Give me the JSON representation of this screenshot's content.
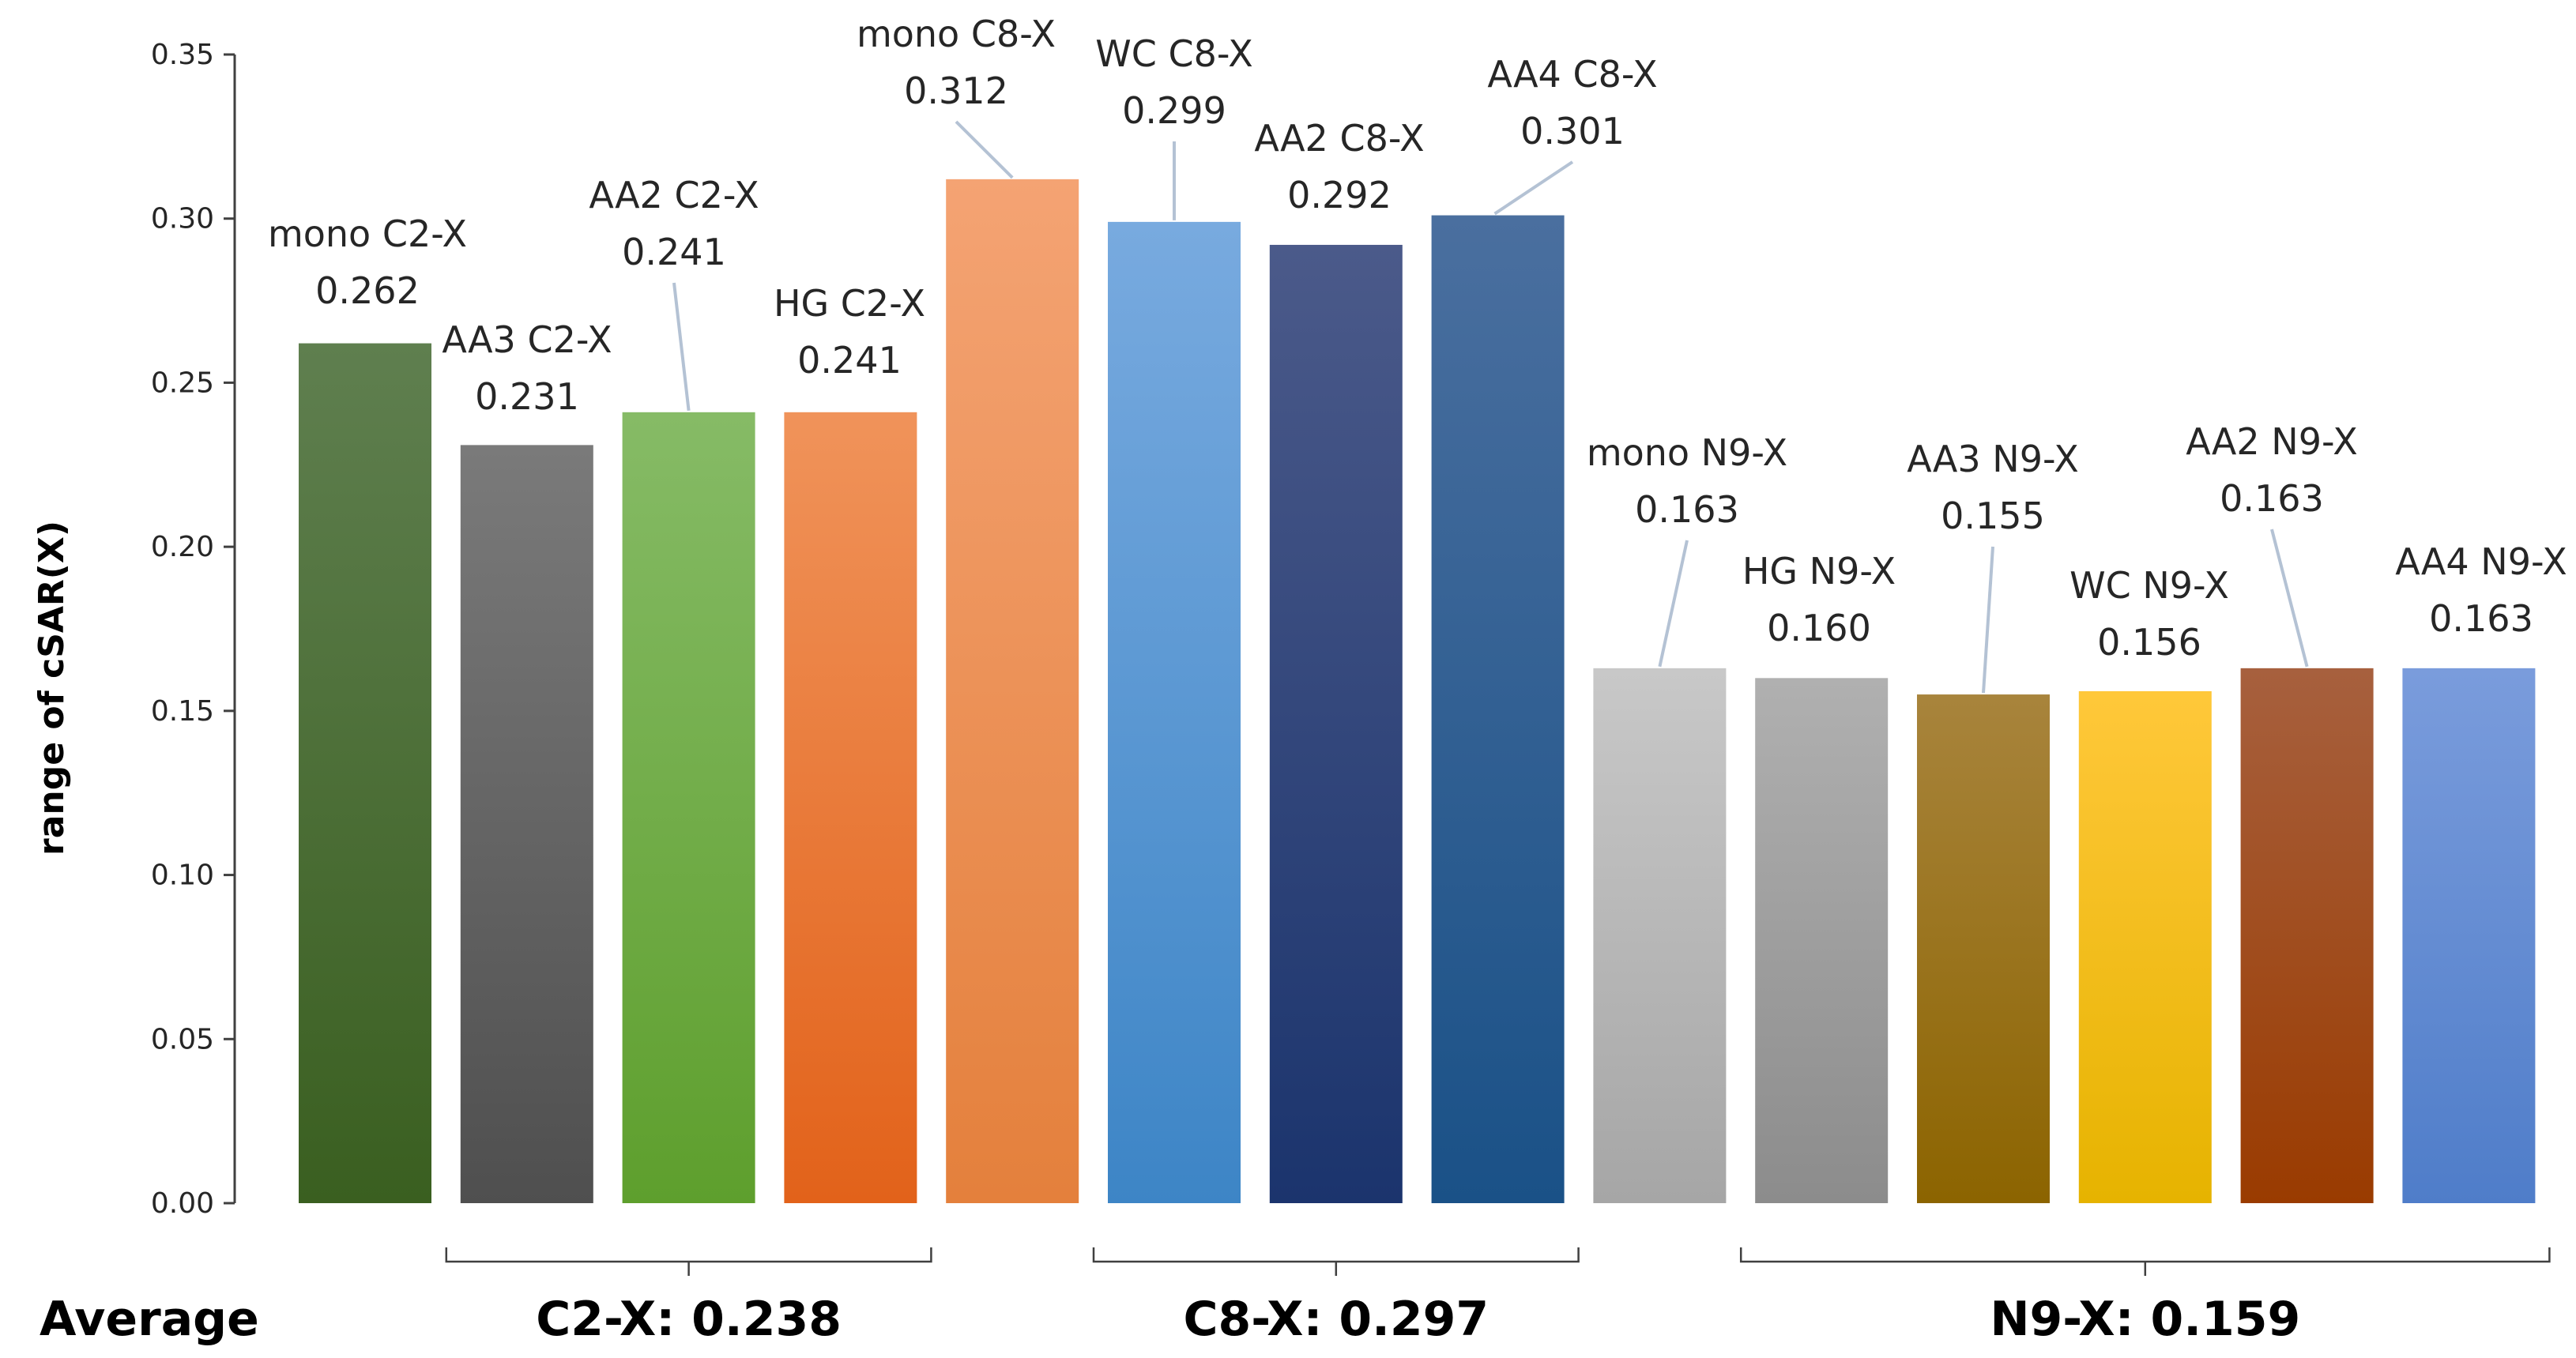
{
  "chart_data": {
    "type": "bar",
    "title": "",
    "xlabel": "",
    "ylabel": "range of cSAR(X)",
    "ylim": [
      0,
      0.35
    ],
    "yticks": [
      "0.00",
      "0.05",
      "0.10",
      "0.15",
      "0.20",
      "0.25",
      "0.30",
      "0.35"
    ],
    "grid": false,
    "legend": "none",
    "bars": [
      {
        "name": "mono C2-X",
        "value": 0.262,
        "label": "0.262",
        "color_top": "#5f7f4f",
        "color_bottom": "#3a5f20"
      },
      {
        "name": "AA3 C2-X",
        "value": 0.231,
        "label": "0.231",
        "color_top": "#7a7a7a",
        "color_bottom": "#4f4f4f"
      },
      {
        "name": "AA2 C2-X",
        "value": 0.241,
        "label": "0.241",
        "color_top": "#86bb66",
        "color_bottom": "#5e9f2d"
      },
      {
        "name": "HG C2-X",
        "value": 0.241,
        "label": "0.241",
        "color_top": "#f0935a",
        "color_bottom": "#e2621a"
      },
      {
        "name": "mono C8-X",
        "value": 0.312,
        "label": "0.312",
        "color_top": "#f4a373",
        "color_bottom": "#e4803c"
      },
      {
        "name": "WC C8-X",
        "value": 0.299,
        "label": "0.299",
        "color_top": "#78aadf",
        "color_bottom": "#3d85c6"
      },
      {
        "name": "AA2 C8-X",
        "value": 0.292,
        "label": "0.292",
        "color_top": "#4b5a8a",
        "color_bottom": "#1b346d"
      },
      {
        "name": "AA4 C8-X",
        "value": 0.301,
        "label": "0.301",
        "color_top": "#4a6f9f",
        "color_bottom": "#1a5187"
      },
      {
        "name": "mono N9-X",
        "value": 0.163,
        "label": "0.163",
        "color_top": "#c8c8c8",
        "color_bottom": "#a6a6a6"
      },
      {
        "name": "HG N9-X",
        "value": 0.16,
        "label": "0.160",
        "color_top": "#b0b0b0",
        "color_bottom": "#8c8c8c"
      },
      {
        "name": "AA3 N9-X",
        "value": 0.155,
        "label": "0.155",
        "color_top": "#a8843c",
        "color_bottom": "#8c6400"
      },
      {
        "name": "WC N9-X",
        "value": 0.156,
        "label": "0.156",
        "color_top": "#ffc83a",
        "color_bottom": "#e6b300"
      },
      {
        "name": "AA2 N9-X",
        "value": 0.163,
        "label": "0.163",
        "color_top": "#a7603e",
        "color_bottom": "#9a3b00"
      },
      {
        "name": "AA4 N9-X",
        "value": 0.163,
        "label": "0.163",
        "color_top": "#7a9cdc",
        "color_bottom": "#4f7dc9"
      }
    ],
    "averages": {
      "label": "Average",
      "groups": [
        {
          "name": "C2-X",
          "text": "C2-X: 0.238",
          "from_bar": 1,
          "to_bar": 3
        },
        {
          "name": "C8-X",
          "text": "C8-X: 0.297",
          "from_bar": 5,
          "to_bar": 7
        },
        {
          "name": "N9-X",
          "text": "N9-X: 0.159",
          "from_bar": 9,
          "to_bar": 13
        }
      ]
    }
  }
}
